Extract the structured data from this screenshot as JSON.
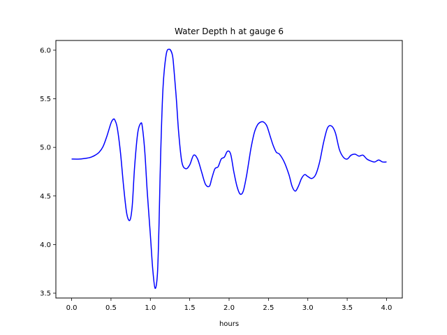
{
  "chart_data": {
    "type": "line",
    "title": "Water Depth h at gauge 6",
    "xlabel": "hours",
    "ylabel": "",
    "xlim": [
      -0.2,
      4.2
    ],
    "ylim": [
      3.45,
      6.1
    ],
    "xticks": [
      0.0,
      0.5,
      1.0,
      1.5,
      2.0,
      2.5,
      3.0,
      3.5,
      4.0
    ],
    "xtick_labels": [
      "0.0",
      "0.5",
      "1.0",
      "1.5",
      "2.0",
      "2.5",
      "3.0",
      "3.5",
      "4.0"
    ],
    "yticks": [
      3.5,
      4.0,
      4.5,
      5.0,
      5.5,
      6.0
    ],
    "ytick_labels": [
      "3.5",
      "4.0",
      "4.5",
      "5.0",
      "5.5",
      "6.0"
    ],
    "grid": false,
    "series": [
      {
        "color": "#0000ff",
        "x": [
          0.0,
          0.1,
          0.2,
          0.25,
          0.3,
          0.35,
          0.4,
          0.45,
          0.5,
          0.53,
          0.55,
          0.58,
          0.62,
          0.66,
          0.7,
          0.74,
          0.77,
          0.8,
          0.84,
          0.88,
          0.9,
          0.93,
          0.96,
          1.0,
          1.03,
          1.06,
          1.09,
          1.11,
          1.13,
          1.16,
          1.2,
          1.24,
          1.28,
          1.3,
          1.33,
          1.36,
          1.4,
          1.45,
          1.5,
          1.55,
          1.6,
          1.65,
          1.7,
          1.75,
          1.78,
          1.82,
          1.86,
          1.9,
          1.94,
          1.98,
          2.02,
          2.06,
          2.1,
          2.14,
          2.18,
          2.22,
          2.25,
          2.28,
          2.32,
          2.36,
          2.4,
          2.44,
          2.48,
          2.52,
          2.56,
          2.6,
          2.64,
          2.7,
          2.76,
          2.8,
          2.84,
          2.88,
          2.92,
          2.96,
          3.0,
          3.05,
          3.1,
          3.15,
          3.2,
          3.25,
          3.3,
          3.35,
          3.4,
          3.45,
          3.5,
          3.55,
          3.6,
          3.65,
          3.7,
          3.75,
          3.8,
          3.85,
          3.9,
          3.95,
          4.0
        ],
        "y": [
          4.88,
          4.88,
          4.89,
          4.9,
          4.92,
          4.95,
          5.01,
          5.12,
          5.25,
          5.29,
          5.28,
          5.2,
          4.95,
          4.6,
          4.32,
          4.25,
          4.4,
          4.8,
          5.15,
          5.25,
          5.2,
          4.95,
          4.55,
          4.1,
          3.75,
          3.55,
          3.7,
          4.2,
          4.9,
          5.6,
          5.95,
          6.01,
          5.95,
          5.8,
          5.5,
          5.15,
          4.85,
          4.78,
          4.82,
          4.92,
          4.88,
          4.75,
          4.62,
          4.6,
          4.68,
          4.78,
          4.8,
          4.88,
          4.9,
          4.96,
          4.93,
          4.75,
          4.6,
          4.52,
          4.55,
          4.7,
          4.85,
          5.0,
          5.15,
          5.23,
          5.26,
          5.26,
          5.22,
          5.12,
          5.02,
          4.95,
          4.93,
          4.85,
          4.72,
          4.6,
          4.55,
          4.6,
          4.68,
          4.72,
          4.7,
          4.68,
          4.72,
          4.85,
          5.05,
          5.2,
          5.22,
          5.15,
          4.98,
          4.9,
          4.88,
          4.92,
          4.93,
          4.91,
          4.92,
          4.88,
          4.86,
          4.85,
          4.87,
          4.85,
          4.85
        ]
      }
    ]
  }
}
